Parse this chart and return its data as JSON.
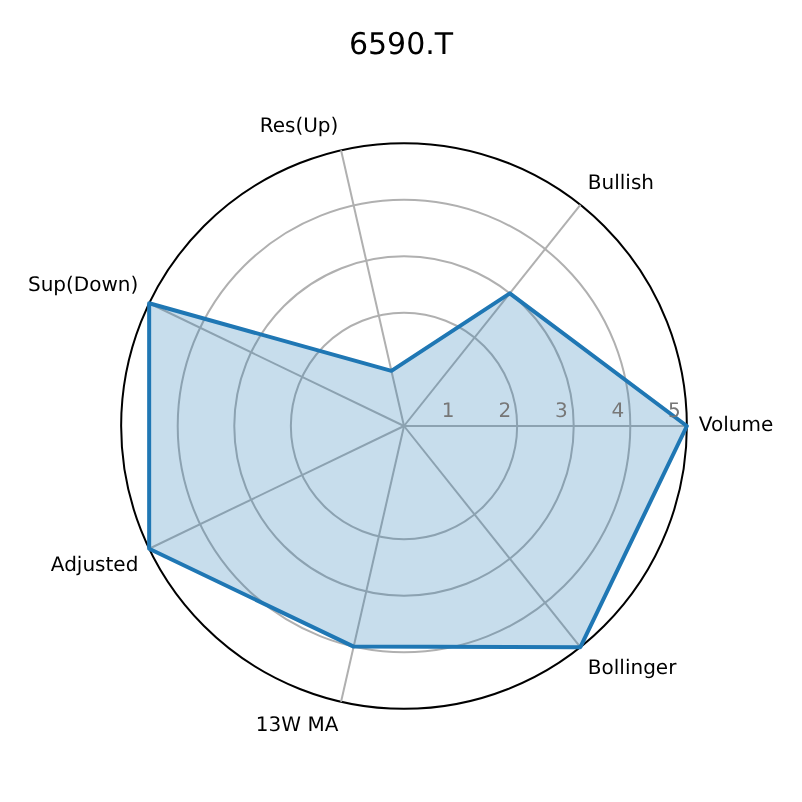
{
  "chart_data": {
    "type": "radar",
    "title": "6590.T",
    "categories": [
      "Bullish",
      "Volume",
      "Bollinger",
      "13W MA",
      "Adjusted",
      "Sup(Down)",
      "Res(Up)"
    ],
    "series": [
      {
        "color": "#1f77b4",
        "values": [
          3,
          5,
          5,
          4,
          5,
          5,
          1
        ]
      }
    ],
    "ylim": [
      0,
      5
    ],
    "yticks": [
      1,
      2,
      3,
      4,
      5
    ],
    "grid": true,
    "legend": false,
    "marker": "none",
    "line_style": "solid"
  }
}
